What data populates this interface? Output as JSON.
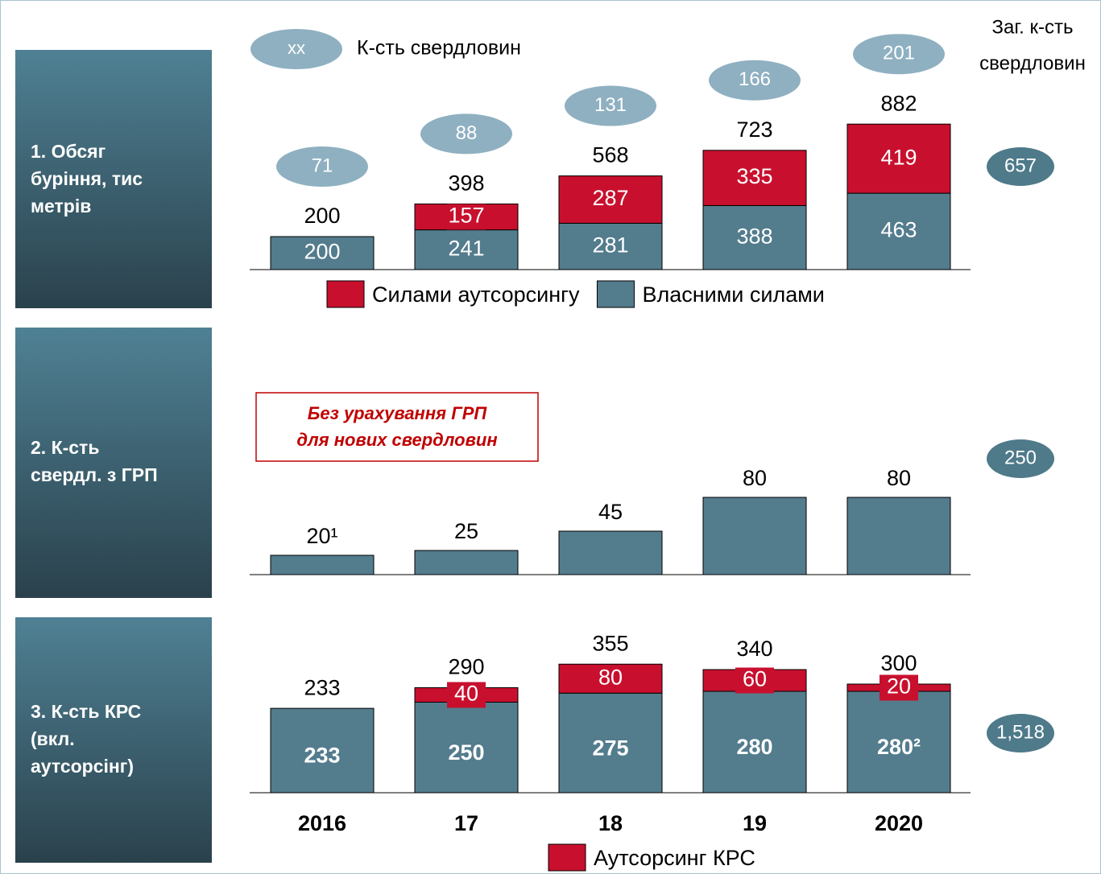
{
  "chart_data": [
    {
      "type": "bar",
      "row_label": [
        "1.  Обсяг",
        "буріння, тис",
        "метрів"
      ],
      "legend_key": {
        "label": "xx",
        "text": "К-сть свердловин"
      },
      "total_title": [
        "Заг. к-сть",
        "свердловин"
      ],
      "ylim": [
        0,
        1000
      ],
      "series": [
        {
          "name": "Власними силами",
          "color": "#537c8d",
          "values": [
            200,
            241,
            281,
            388,
            463
          ]
        },
        {
          "name": "Силами аутсорсингу",
          "color": "#c8102e",
          "values": [
            null,
            157,
            287,
            335,
            419
          ]
        }
      ],
      "totals": [
        200,
        398,
        568,
        723,
        882
      ],
      "well_counts": [
        71,
        88,
        131,
        166,
        201
      ],
      "total": 657
    },
    {
      "type": "bar",
      "row_label": [
        "2. К-сть",
        "свердл. з ГРП"
      ],
      "note": [
        "Без урахування ГРП",
        "для нових свердловин"
      ],
      "ylim": [
        0,
        100
      ],
      "series": [
        {
          "color": "#537c8d",
          "values": [
            20,
            25,
            45,
            80,
            80
          ],
          "value_labels": [
            "20¹",
            "25",
            "45",
            "80",
            "80"
          ]
        }
      ],
      "total": 250
    },
    {
      "type": "bar",
      "row_label": [
        "3. К-сть КРС",
        "(вкл.",
        "аутсорсінг)"
      ],
      "categories": [
        "2016",
        "17",
        "18",
        "19",
        "2020"
      ],
      "ylim": [
        0,
        400
      ],
      "series": [
        {
          "color": "#537c8d",
          "values": [
            233,
            250,
            275,
            280,
            280
          ],
          "value_labels": [
            "233",
            "250",
            "275",
            "280",
            "280²"
          ]
        },
        {
          "name": "Аутсорсинг КРС",
          "color": "#c8102e",
          "values": [
            null,
            40,
            80,
            60,
            20
          ]
        }
      ],
      "totals": [
        233,
        290,
        355,
        340,
        300
      ],
      "total": {
        "value": 1518,
        "label": "1,518"
      }
    }
  ]
}
